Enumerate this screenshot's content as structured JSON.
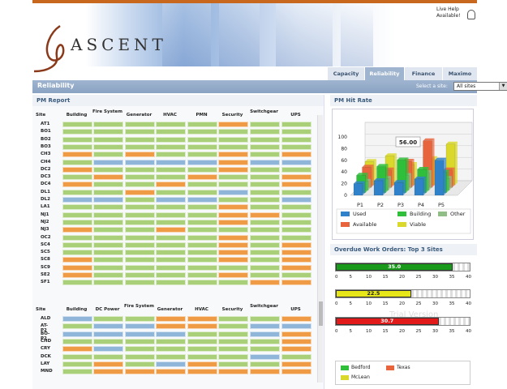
{
  "logo": {
    "text": "ASCENT"
  },
  "live_help": {
    "line1": "Live Help",
    "line2": "Available!"
  },
  "tabs": [
    {
      "label": "Capacity",
      "active": false
    },
    {
      "label": "Reliability",
      "active": true
    },
    {
      "label": "Finance",
      "active": false
    },
    {
      "label": "Maximo",
      "active": false
    }
  ],
  "page_title": "Reliability",
  "site_selector": {
    "label": "Select a site:",
    "value": "All sites"
  },
  "pm_report": {
    "title": "PM Report",
    "colors": {
      "G": "#a9cf78",
      "O": "#ef9b45",
      "B": "#8fb5d9"
    },
    "table1": {
      "headers": [
        "Site",
        "Building",
        "Fire System",
        "Generator",
        "HVAC",
        "PMN",
        "Security",
        "Switchgear",
        "UPS"
      ],
      "rows": [
        {
          "site": "AT1",
          "s": "GGGGGOGG"
        },
        {
          "site": "BO1",
          "s": "GGGGGGGG"
        },
        {
          "site": "BO2",
          "s": "GGGGGGGG"
        },
        {
          "site": "BO3",
          "s": "GGGGGGGG"
        },
        {
          "site": "CH3",
          "s": "OGOGGOGO"
        },
        {
          "site": "CH4",
          "s": "GBBBBOBB"
        },
        {
          "site": "DC2",
          "s": "OGGGGOGG"
        },
        {
          "site": "DC3",
          "s": "GOGGOGGO"
        },
        {
          "site": "DC4",
          "s": "OGGOGGGO"
        },
        {
          "site": "DL1",
          "s": "GGOGGBGG"
        },
        {
          "site": "DL2",
          "s": "BBGBBGGB"
        },
        {
          "site": "LA1",
          "s": "GGGGGOGG"
        },
        {
          "site": "NJ1",
          "s": "GGGGGOOG"
        },
        {
          "site": "NJ2",
          "s": "GGGGGOGG"
        },
        {
          "site": "NJ3",
          "s": "OGGOGGGG"
        },
        {
          "site": "OC2",
          "s": "GGGGGOGG"
        },
        {
          "site": "SC4",
          "s": "GGGGGOGO"
        },
        {
          "site": "SC5",
          "s": "GGGGGOGO"
        },
        {
          "site": "SC8",
          "s": "OGGGGOGO"
        },
        {
          "site": "SC9",
          "s": "OGGGGGGO"
        },
        {
          "site": "SE2",
          "s": "OGGGGOGG"
        },
        {
          "site": "SF1",
          "s": "GGGGGGOO"
        }
      ]
    },
    "table2": {
      "headers": [
        "Site",
        "Building",
        "DC Power",
        "Fire System",
        "Generator",
        "HVAC",
        "Security",
        "Switchgear",
        "UPS"
      ],
      "rows": [
        {
          "site": "ALD",
          "s": "BGGOOGGO"
        },
        {
          "site": "AT-P2",
          "s": "GBBOOGBB"
        },
        {
          "site": "BO-P2",
          "s": "BBBBGGBO"
        },
        {
          "site": "CHD",
          "s": "GGGGGGGO"
        },
        {
          "site": "CRY",
          "s": "OBGGGGGO"
        },
        {
          "site": "DCK",
          "s": "GGGGGGBG"
        },
        {
          "site": "LAY",
          "s": "GOGBOGGO"
        },
        {
          "site": "MND",
          "s": "GOOOOOOO"
        }
      ]
    }
  },
  "pm_hit_rate": {
    "title": "PM Hit Rate",
    "tooltip": "56.00",
    "legend": [
      {
        "label": "Used",
        "color": "#2f82c9"
      },
      {
        "label": "Building",
        "color": "#2fbf3a"
      },
      {
        "label": "Other",
        "color": "#8fbf86"
      },
      {
        "label": "Available",
        "color": "#e8643c"
      },
      {
        "label": "Viable",
        "color": "#d9d82b"
      }
    ]
  },
  "chart_data": {
    "type": "bar",
    "title": "PM Hit Rate",
    "categories": [
      "P1",
      "P2",
      "P3",
      "P4",
      "P5"
    ],
    "ylim": [
      0,
      100
    ],
    "yticks": [
      0,
      20,
      40,
      60,
      80,
      100
    ],
    "series": [
      {
        "name": "Used",
        "values": [
          20,
          25,
          22,
          28,
          60
        ]
      },
      {
        "name": "Building",
        "values": [
          30,
          45,
          56,
          40,
          35
        ]
      },
      {
        "name": "Other",
        "values": [
          15,
          20,
          25,
          30,
          20
        ]
      },
      {
        "name": "Available",
        "values": [
          35,
          30,
          45,
          80,
          30
        ]
      },
      {
        "name": "Viable",
        "values": [
          40,
          50,
          35,
          45,
          70
        ]
      }
    ]
  },
  "overdue": {
    "title": "Overdue Work Orders: Top 3 Sites",
    "scale": [
      "0",
      "5",
      "10",
      "15",
      "20",
      "25",
      "30",
      "35",
      "40"
    ],
    "max": 40,
    "gauges": [
      {
        "label": "35.0",
        "value": 35.0,
        "color": "#1a9a1a"
      },
      {
        "label": "22.5",
        "value": 22.5,
        "color": "#e6e619"
      },
      {
        "label": "30.7",
        "value": 30.7,
        "color": "#e31a1a"
      }
    ],
    "legend": [
      {
        "label": "Bedford",
        "color": "#2fbf3a"
      },
      {
        "label": "Texas",
        "color": "#e8643c"
      },
      {
        "label": "McLean",
        "color": "#d9d82b"
      }
    ]
  }
}
